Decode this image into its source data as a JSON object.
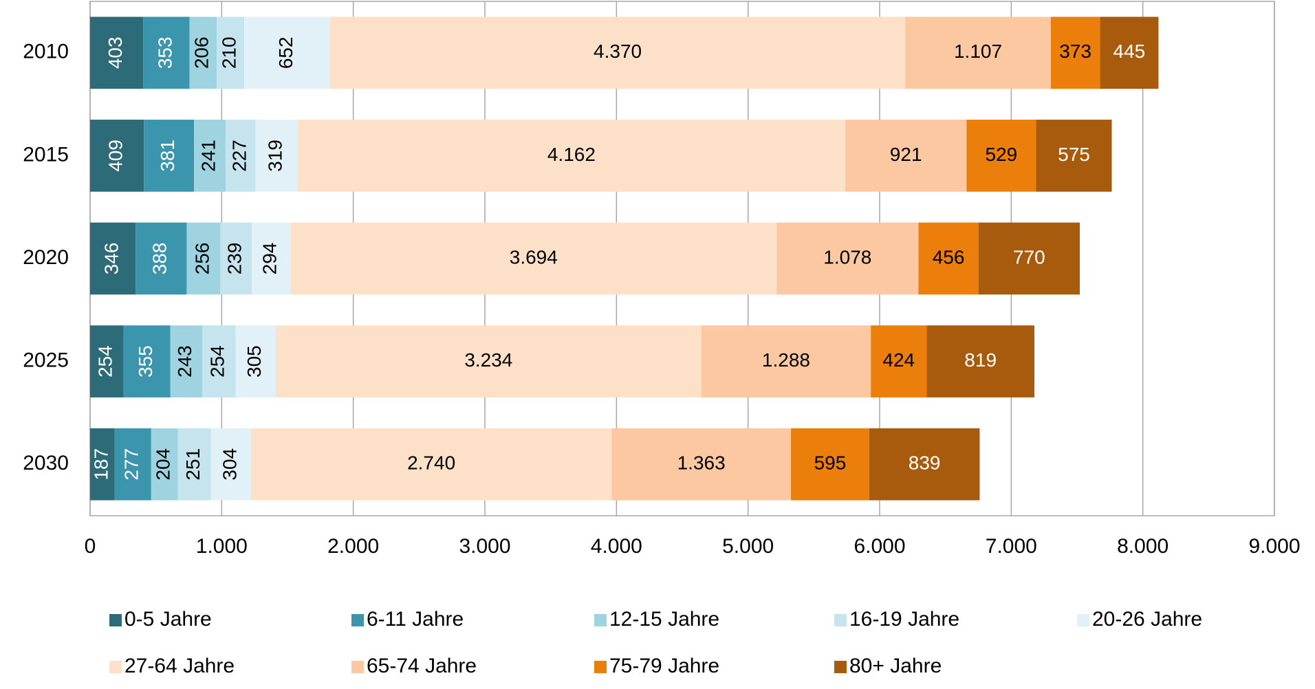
{
  "chart_data": {
    "type": "stacked_bar_horizontal",
    "categories": [
      "2010",
      "2015",
      "2020",
      "2025",
      "2030"
    ],
    "series": [
      {
        "name": "0-5 Jahre",
        "color": "#2e6b78",
        "values": [
          403,
          409,
          346,
          254,
          187
        ]
      },
      {
        "name": "6-11 Jahre",
        "color": "#3a95ad",
        "values": [
          353,
          381,
          388,
          355,
          277
        ]
      },
      {
        "name": "12-15 Jahre",
        "color": "#9fd3e0",
        "values": [
          206,
          241,
          256,
          243,
          204
        ]
      },
      {
        "name": "16-19 Jahre",
        "color": "#c5e4ee",
        "values": [
          210,
          227,
          239,
          254,
          251
        ]
      },
      {
        "name": "20-26 Jahre",
        "color": "#e2f1f7",
        "values": [
          652,
          319,
          294,
          305,
          304
        ]
      },
      {
        "name": "27-64 Jahre",
        "color": "#fde0c8",
        "values": [
          4370,
          4162,
          3694,
          3234,
          2740
        ],
        "value_labels": [
          "4.370",
          "4.162",
          "3.694",
          "3.234",
          "2.740"
        ]
      },
      {
        "name": "65-74 Jahre",
        "color": "#fbc8a2",
        "values": [
          1107,
          921,
          1078,
          1288,
          1363
        ],
        "value_labels": [
          "1.107",
          "921",
          "1.078",
          "1.288",
          "1.363"
        ]
      },
      {
        "name": "75-79 Jahre",
        "color": "#ec7f0c",
        "values": [
          373,
          529,
          456,
          424,
          595
        ]
      },
      {
        "name": "80+ Jahre",
        "color": "#a85b0c",
        "values": [
          445,
          575,
          770,
          819,
          839
        ]
      }
    ],
    "xlim": [
      0,
      9000
    ],
    "xticks": [
      0,
      {
        "value": 1000,
        "label": "1.000"
      },
      {
        "value": 2000,
        "label": "2.000"
      },
      {
        "value": 3000,
        "label": "3.000"
      },
      {
        "value": 4000,
        "label": "4.000"
      },
      {
        "value": 5000,
        "label": "5.000"
      },
      {
        "value": 6000,
        "label": "6.000"
      },
      {
        "value": 7000,
        "label": "7.000"
      },
      {
        "value": 8000,
        "label": "8.000"
      },
      {
        "value": 9000,
        "label": "9.000"
      }
    ],
    "grid": true,
    "legend": "bottom"
  }
}
